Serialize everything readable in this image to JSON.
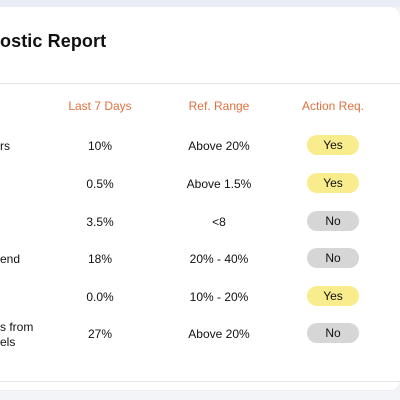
{
  "report": {
    "title": "ostic Report",
    "columns": [
      "Last 7 Days",
      "Ref. Range",
      "Action Req."
    ],
    "rows": [
      {
        "label": "rs",
        "last7": "10%",
        "range": "Above 20%",
        "action": "Yes"
      },
      {
        "label": "",
        "last7": "0.5%",
        "range": "Above 1.5%",
        "action": "Yes"
      },
      {
        "label": "",
        "last7": "3.5%",
        "range": "<8",
        "action": "No"
      },
      {
        "label": "end",
        "last7": "18%",
        "range": "20% - 40%",
        "action": "No"
      },
      {
        "label": "",
        "last7": "0.0%",
        "range": "10% - 20%",
        "action": "Yes"
      },
      {
        "label": "s from\nels",
        "last7": "27%",
        "range": "Above 20%",
        "action": "No"
      }
    ]
  },
  "colors": {
    "header_accent": "#e0703f",
    "yes_pill": "#f9ec8c",
    "no_pill": "#d6d6d6"
  }
}
